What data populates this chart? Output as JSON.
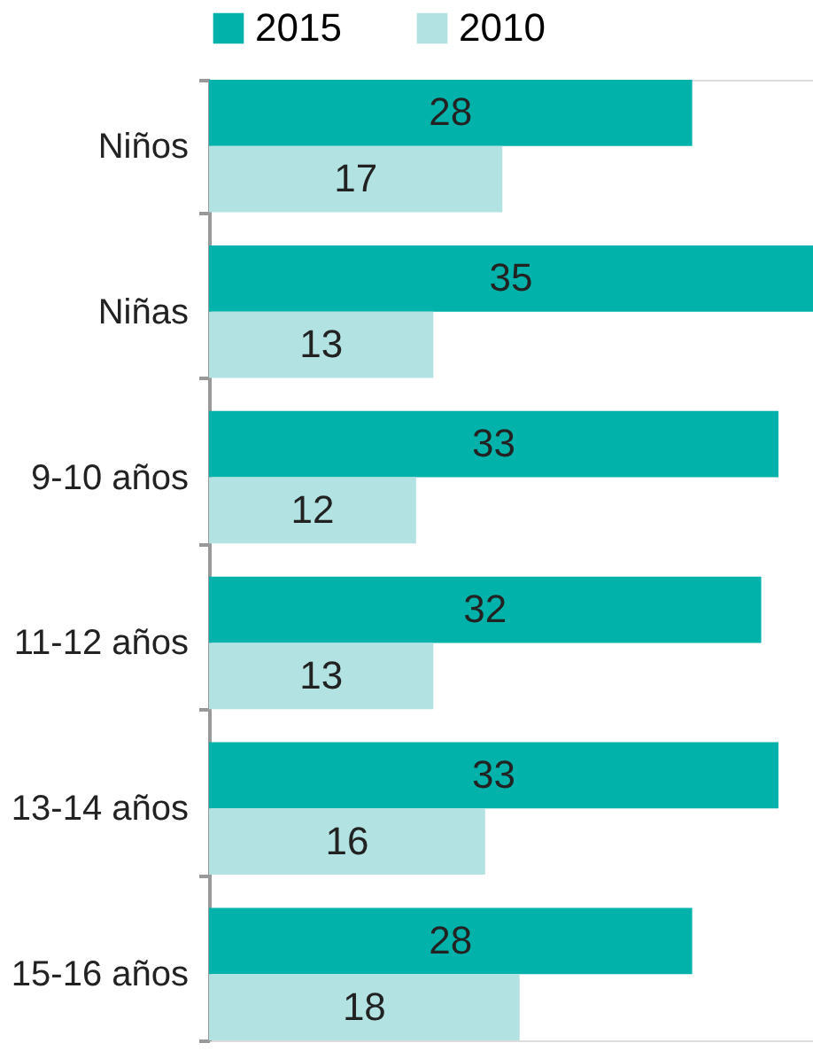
{
  "chart_data": {
    "type": "bar",
    "orientation": "horizontal",
    "categories": [
      "Niños",
      "Niñas",
      "9-10 años",
      "11-12 años",
      "13-14 años",
      "15-16 años"
    ],
    "series": [
      {
        "name": "2015",
        "color": "#00b2a9",
        "values": [
          28,
          35,
          33,
          32,
          33,
          28
        ]
      },
      {
        "name": "2010",
        "color": "#b2e2e2",
        "values": [
          17,
          13,
          12,
          13,
          16,
          18
        ]
      }
    ],
    "data_labels": true,
    "legend": "top",
    "grid": false
  }
}
